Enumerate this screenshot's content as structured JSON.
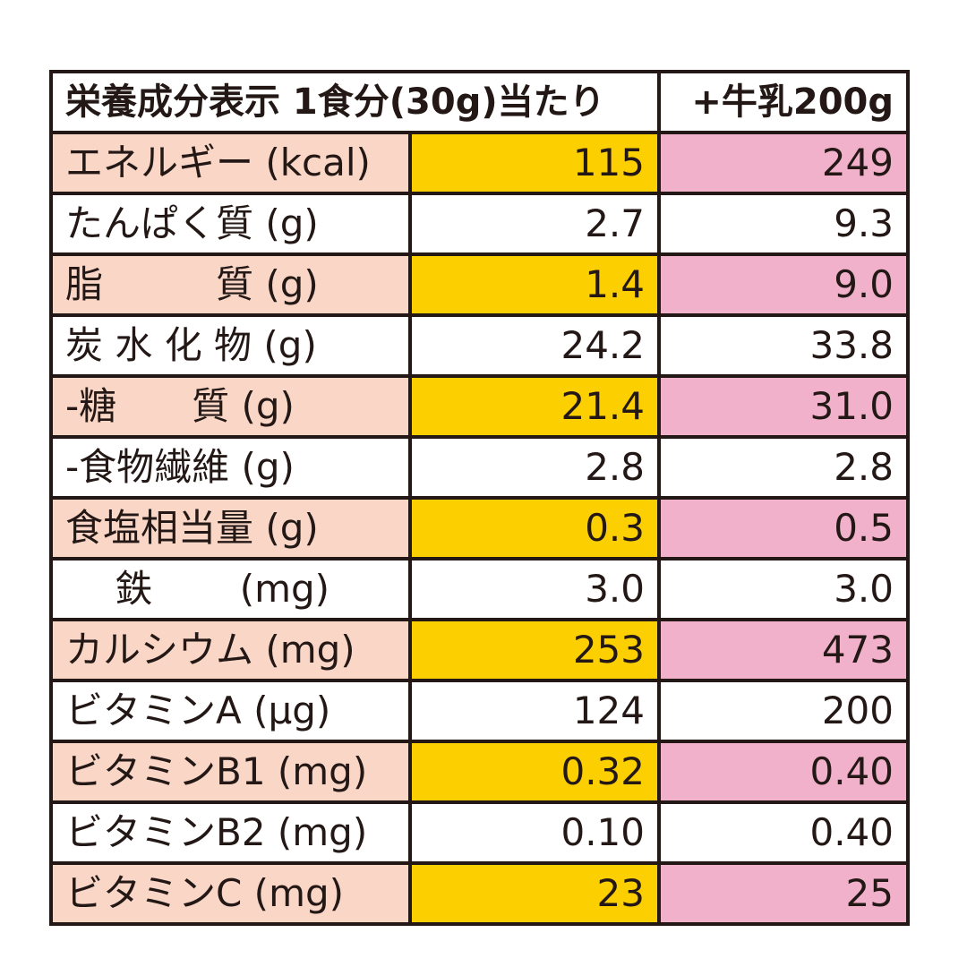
{
  "table": {
    "header": {
      "label": "栄養成分表示 1食分(30g)当たり",
      "col2": "+牛乳200g"
    },
    "rows": [
      {
        "label": "エネルギー (kcal)",
        "per_serving": "115",
        "with_milk": "249"
      },
      {
        "label": "たんぱく質 (g)",
        "per_serving": "2.7",
        "with_milk": "9.3"
      },
      {
        "label": "脂　　　質 (g)",
        "per_serving": "1.4",
        "with_milk": "9.0"
      },
      {
        "label": "炭 水 化 物 (g)",
        "per_serving": "24.2",
        "with_milk": "33.8"
      },
      {
        "label": " -糖　　質 (g)",
        "per_serving": "21.4",
        "with_milk": "31.0"
      },
      {
        "label": " -食物繊維 (g)",
        "per_serving": "2.8",
        "with_milk": "2.8"
      },
      {
        "label": "食塩相当量 (g)",
        "per_serving": "0.3",
        "with_milk": "0.5"
      },
      {
        "label": "　 鉄　　 (mg)",
        "per_serving": "3.0",
        "with_milk": "3.0"
      },
      {
        "label": "カルシウム (mg)",
        "per_serving": "253",
        "with_milk": "473"
      },
      {
        "label": "ビタミンA (μg)",
        "per_serving": "124",
        "with_milk": "200"
      },
      {
        "label": "ビタミンB1 (mg)",
        "per_serving": "0.32",
        "with_milk": "0.40"
      },
      {
        "label": "ビタミンB2 (mg)",
        "per_serving": "0.10",
        "with_milk": "0.40"
      },
      {
        "label": "ビタミンC (mg)",
        "per_serving": "23",
        "with_milk": "25"
      }
    ]
  },
  "colors": {
    "label_shade": "#f9d6c6",
    "col1_shade": "#fccf00",
    "col2_shade": "#f1b1cb",
    "border": "#231815"
  }
}
